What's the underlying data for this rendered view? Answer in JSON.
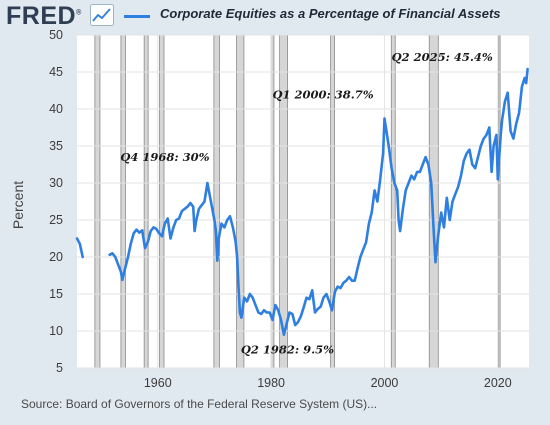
{
  "header": {
    "logo_text": "FRED",
    "logo_reg": "®",
    "logo_icon": "chart-line-icon",
    "legend_label": "Corporate Equities as a Percentage of Financial Assets"
  },
  "footer": {
    "source": "Source: Board of Governors of the Federal Reserve System (US)..."
  },
  "colors": {
    "series": "#2e7fe0",
    "recession": "#d6d6d6",
    "background": "#e1e9f0",
    "plot_area": "#ffffff"
  },
  "chart_data": {
    "type": "line",
    "title": "",
    "xlabel": "",
    "ylabel": "Percent",
    "xlim": [
      1945.75,
      2025.5
    ],
    "ylim": [
      5,
      50
    ],
    "y_ticks": [
      5,
      10,
      15,
      20,
      25,
      30,
      35,
      40,
      45,
      50
    ],
    "x_ticks": [
      1960,
      1980,
      2000,
      2020
    ],
    "grid": true,
    "legend": "top",
    "recessions": [
      [
        1948.9,
        1949.8
      ],
      [
        1953.5,
        1954.3
      ],
      [
        1957.6,
        1958.3
      ],
      [
        1960.3,
        1961.1
      ],
      [
        1969.9,
        1970.9
      ],
      [
        1973.9,
        1975.2
      ],
      [
        1980.0,
        1980.5
      ],
      [
        1981.5,
        1982.9
      ],
      [
        1990.5,
        1991.2
      ],
      [
        2001.2,
        2001.9
      ],
      [
        2007.9,
        2009.5
      ],
      [
        2020.1,
        2020.4
      ]
    ],
    "series": [
      {
        "name": "Corporate Equities as a Percentage of Financial Assets",
        "segments": [
          [
            [
              1945.75,
              22.5
            ],
            [
              1946.25,
              21.8
            ],
            [
              1946.75,
              20.0
            ]
          ],
          [
            [
              1951.5,
              20.3
            ],
            [
              1952.0,
              20.5
            ],
            [
              1952.5,
              20.0
            ],
            [
              1953.0,
              19.0
            ],
            [
              1953.5,
              18.0
            ],
            [
              1953.75,
              16.9
            ],
            [
              1954.25,
              18.5
            ],
            [
              1954.75,
              20.0
            ],
            [
              1955.25,
              21.8
            ],
            [
              1955.75,
              23.2
            ],
            [
              1956.25,
              23.7
            ],
            [
              1956.75,
              23.3
            ],
            [
              1957.25,
              23.6
            ],
            [
              1957.75,
              21.2
            ],
            [
              1958.25,
              22.0
            ],
            [
              1958.75,
              23.5
            ],
            [
              1959.25,
              24.0
            ],
            [
              1959.75,
              23.8
            ],
            [
              1960.25,
              23.2
            ],
            [
              1960.75,
              22.8
            ],
            [
              1961.25,
              24.5
            ],
            [
              1961.75,
              25.2
            ],
            [
              1962.25,
              22.5
            ],
            [
              1962.75,
              24.0
            ],
            [
              1963.25,
              25.0
            ],
            [
              1963.75,
              25.2
            ],
            [
              1964.25,
              26.2
            ],
            [
              1964.75,
              26.5
            ],
            [
              1965.25,
              26.8
            ],
            [
              1965.75,
              27.3
            ],
            [
              1966.25,
              26.8
            ],
            [
              1966.5,
              23.5
            ],
            [
              1966.75,
              24.8
            ],
            [
              1967.25,
              26.5
            ],
            [
              1967.75,
              27.0
            ],
            [
              1968.25,
              27.5
            ],
            [
              1968.75,
              30.0
            ],
            [
              1969.25,
              28.0
            ],
            [
              1969.75,
              26.0
            ],
            [
              1970.0,
              25.0
            ],
            [
              1970.25,
              23.5
            ],
            [
              1970.5,
              19.5
            ],
            [
              1970.75,
              22.5
            ],
            [
              1971.25,
              24.5
            ],
            [
              1971.75,
              24.0
            ],
            [
              1972.25,
              25.0
            ],
            [
              1972.75,
              25.5
            ],
            [
              1973.25,
              24.0
            ],
            [
              1973.75,
              22.0
            ],
            [
              1974.0,
              20.0
            ],
            [
              1974.25,
              16.0
            ],
            [
              1974.5,
              12.5
            ],
            [
              1974.75,
              11.8
            ],
            [
              1975.25,
              14.5
            ],
            [
              1975.75,
              14.0
            ],
            [
              1976.25,
              15.0
            ],
            [
              1976.75,
              14.5
            ],
            [
              1977.25,
              13.5
            ],
            [
              1977.75,
              12.5
            ],
            [
              1978.25,
              12.3
            ],
            [
              1978.75,
              12.8
            ],
            [
              1979.25,
              12.5
            ],
            [
              1979.75,
              12.5
            ],
            [
              1980.25,
              11.5
            ],
            [
              1980.75,
              13.5
            ],
            [
              1981.25,
              12.8
            ],
            [
              1981.75,
              11.5
            ],
            [
              1982.25,
              9.5
            ],
            [
              1982.75,
              11.0
            ],
            [
              1983.25,
              12.5
            ],
            [
              1983.75,
              12.3
            ],
            [
              1984.25,
              10.8
            ],
            [
              1984.75,
              11.2
            ],
            [
              1985.25,
              12.0
            ],
            [
              1985.75,
              13.2
            ],
            [
              1986.25,
              14.5
            ],
            [
              1986.75,
              14.3
            ],
            [
              1987.25,
              15.5
            ],
            [
              1987.75,
              12.5
            ],
            [
              1988.25,
              13.0
            ],
            [
              1988.75,
              13.3
            ],
            [
              1989.25,
              14.5
            ],
            [
              1989.75,
              15.0
            ],
            [
              1990.25,
              14.0
            ],
            [
              1990.75,
              12.8
            ],
            [
              1991.25,
              15.3
            ],
            [
              1991.75,
              16.0
            ],
            [
              1992.25,
              15.8
            ],
            [
              1992.75,
              16.5
            ],
            [
              1993.25,
              16.8
            ],
            [
              1993.75,
              17.3
            ],
            [
              1994.25,
              16.8
            ],
            [
              1994.75,
              16.8
            ],
            [
              1995.25,
              18.5
            ],
            [
              1995.75,
              20.0
            ],
            [
              1996.25,
              21.0
            ],
            [
              1996.75,
              22.0
            ],
            [
              1997.25,
              24.5
            ],
            [
              1997.75,
              26.0
            ],
            [
              1998.25,
              29.0
            ],
            [
              1998.75,
              27.5
            ],
            [
              1999.25,
              30.5
            ],
            [
              1999.75,
              34.0
            ],
            [
              2000.0,
              38.7
            ],
            [
              2000.25,
              37.5
            ],
            [
              2000.75,
              35.0
            ],
            [
              2001.25,
              32.0
            ],
            [
              2001.75,
              30.0
            ],
            [
              2002.25,
              29.0
            ],
            [
              2002.5,
              25.0
            ],
            [
              2002.75,
              23.5
            ],
            [
              2003.25,
              26.5
            ],
            [
              2003.75,
              29.0
            ],
            [
              2004.25,
              30.0
            ],
            [
              2004.75,
              31.0
            ],
            [
              2005.25,
              30.5
            ],
            [
              2005.75,
              31.5
            ],
            [
              2006.25,
              31.5
            ],
            [
              2006.75,
              32.5
            ],
            [
              2007.25,
              33.5
            ],
            [
              2007.75,
              32.5
            ],
            [
              2008.25,
              30.0
            ],
            [
              2008.75,
              22.5
            ],
            [
              2009.0,
              19.3
            ],
            [
              2009.5,
              23.0
            ],
            [
              2010.0,
              26.0
            ],
            [
              2010.5,
              24.0
            ],
            [
              2011.0,
              28.0
            ],
            [
              2011.5,
              25.0
            ],
            [
              2012.0,
              27.5
            ],
            [
              2012.5,
              28.5
            ],
            [
              2013.0,
              29.5
            ],
            [
              2013.5,
              31.0
            ],
            [
              2014.0,
              33.0
            ],
            [
              2014.5,
              34.0
            ],
            [
              2015.0,
              34.5
            ],
            [
              2015.5,
              32.5
            ],
            [
              2016.0,
              32.0
            ],
            [
              2016.5,
              33.5
            ],
            [
              2017.0,
              35.0
            ],
            [
              2017.5,
              36.0
            ],
            [
              2018.0,
              36.5
            ],
            [
              2018.5,
              37.5
            ],
            [
              2018.9,
              31.5
            ],
            [
              2019.25,
              35.0
            ],
            [
              2019.75,
              36.5
            ],
            [
              2020.0,
              30.5
            ],
            [
              2020.5,
              36.5
            ],
            [
              2020.75,
              38.5
            ],
            [
              2021.25,
              41.0
            ],
            [
              2021.75,
              42.2
            ],
            [
              2022.25,
              37.0
            ],
            [
              2022.75,
              36.0
            ],
            [
              2023.25,
              38.0
            ],
            [
              2023.75,
              39.5
            ],
            [
              2024.25,
              43.0
            ],
            [
              2024.75,
              44.2
            ],
            [
              2025.0,
              43.5
            ],
            [
              2025.25,
              45.4
            ]
          ]
        ]
      }
    ],
    "annotations": [
      {
        "text": "Q4 1968: 30%",
        "x": 1968.75,
        "y": 30.0
      },
      {
        "text": "Q2 1982: 9.5%",
        "x": 1982.25,
        "y": 9.5
      },
      {
        "text": "Q1 2000: 38.7%",
        "x": 2000.0,
        "y": 38.7
      },
      {
        "text": "Q2 2025: 45.4%",
        "x": 2025.25,
        "y": 45.4
      }
    ]
  }
}
